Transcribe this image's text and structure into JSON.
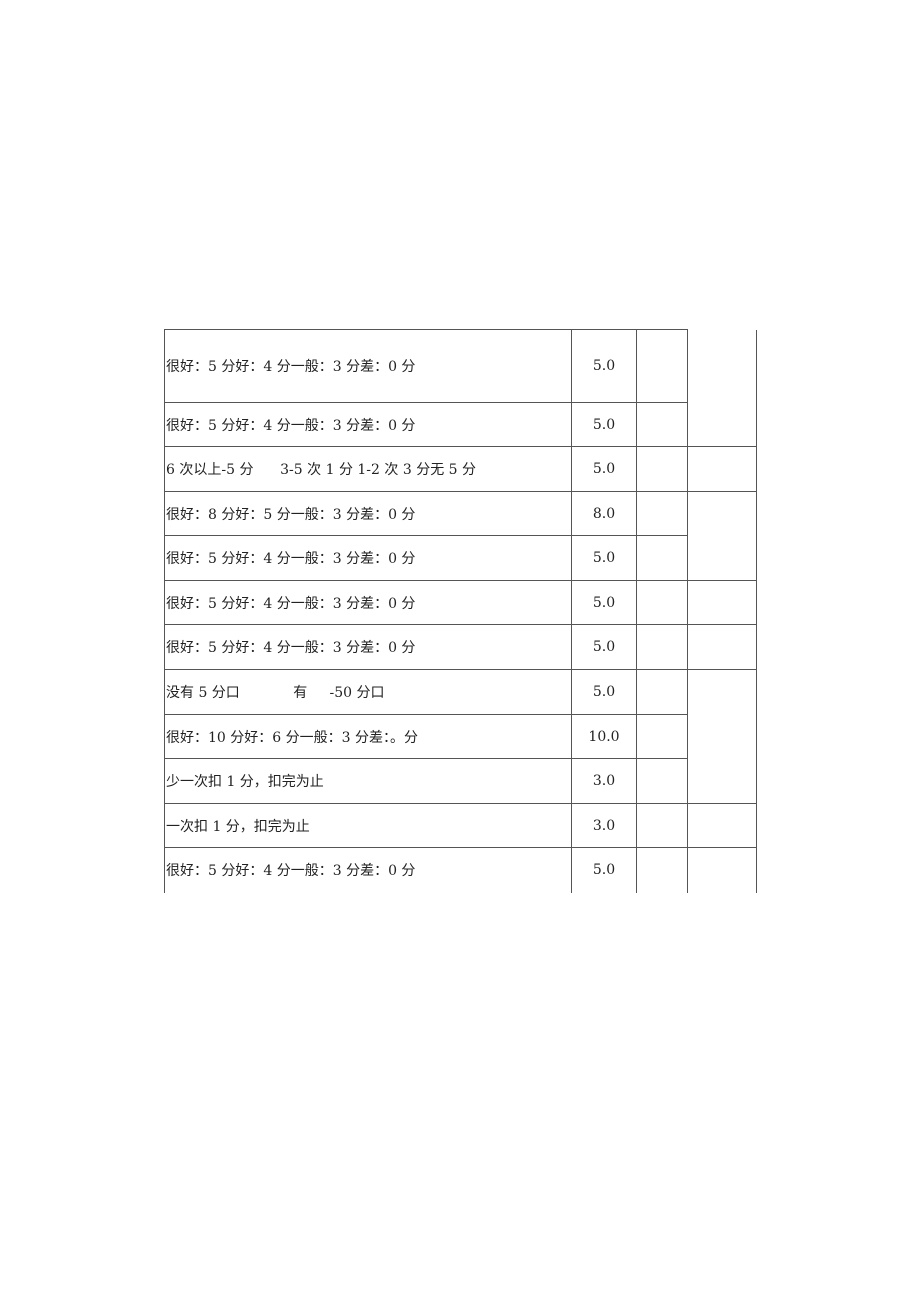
{
  "table": {
    "rows": [
      {
        "criteria": "很好：5 分好：4 分一般：3 分差：0 分",
        "score": "5.0"
      },
      {
        "criteria": "很好：5 分好：4 分一般：3 分差：0 分",
        "score": "5.0"
      },
      {
        "criteria": "6 次以上-5 分      3-5 次 1 分 1-2 次 3 分无 5 分",
        "score": "5.0"
      },
      {
        "criteria": "很好：8 分好：5 分一般：3 分差：0 分",
        "score": "8.0"
      },
      {
        "criteria": "很好：5 分好：4 分一般：3 分差：0 分",
        "score": "5.0"
      },
      {
        "criteria": "很好：5 分好：4 分一般：3 分差：0 分",
        "score": "5.0"
      },
      {
        "criteria": "很好：5 分好：4 分一般：3 分差：0 分",
        "score": "5.0"
      },
      {
        "criteria": "没有 5 分口            有     -50 分口",
        "score": "5.0"
      },
      {
        "criteria": "很好：10 分好：6 分一般：3 分差：。分",
        "score": "10.0"
      },
      {
        "criteria": "少一次扣 1 分，扣完为止",
        "score": "3.0"
      },
      {
        "criteria": "一次扣 1 分，扣完为止",
        "score": "3.0"
      },
      {
        "criteria": "很好：5 分好：4 分一般：3 分差：0 分",
        "score": "5.0"
      }
    ]
  }
}
